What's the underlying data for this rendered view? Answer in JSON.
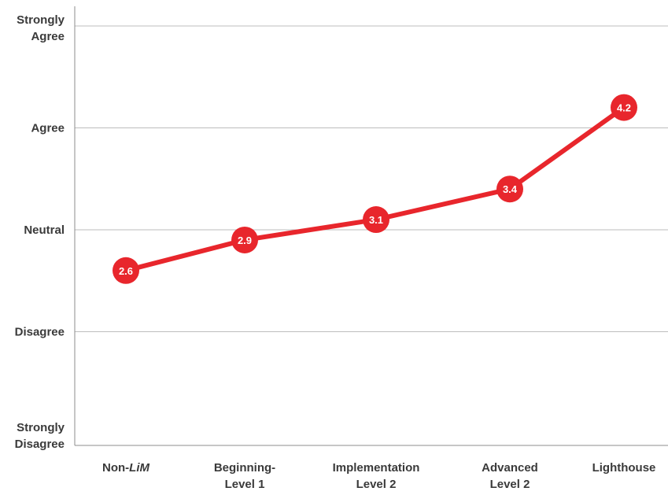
{
  "chart_data": {
    "type": "line",
    "categories": [
      "Non-LiM",
      "Beginning-Level 1",
      "Implementation Level 2",
      "Advanced Level 2",
      "Lighthouse"
    ],
    "category_label_lines": [
      [
        "Non-",
        "LiM"
      ],
      [
        "Beginning-",
        "Level 1"
      ],
      [
        "Implementation",
        "Level 2"
      ],
      [
        "Advanced",
        "Level 2"
      ],
      [
        "Lighthouse"
      ]
    ],
    "values": [
      2.6,
      2.9,
      3.1,
      3.4,
      4.2
    ],
    "data_labels": [
      "2.6",
      "2.9",
      "3.1",
      "3.4",
      "4.2"
    ],
    "ylim": [
      1,
      5
    ],
    "yticks": [
      {
        "value": 5,
        "lines": [
          "Strongly",
          "Agree"
        ]
      },
      {
        "value": 4,
        "lines": [
          "Agree"
        ]
      },
      {
        "value": 3,
        "lines": [
          "Neutral"
        ]
      },
      {
        "value": 2,
        "lines": [
          "Disagree"
        ]
      },
      {
        "value": 1,
        "lines": [
          "Strongly",
          "Disagree"
        ]
      }
    ],
    "grid": true,
    "line_color": "#e8262c",
    "marker_color": "#e8262c",
    "grid_color": "#bdbdbd",
    "axis_color": "#8c8c8c",
    "text_color": "#3a3a3a"
  }
}
